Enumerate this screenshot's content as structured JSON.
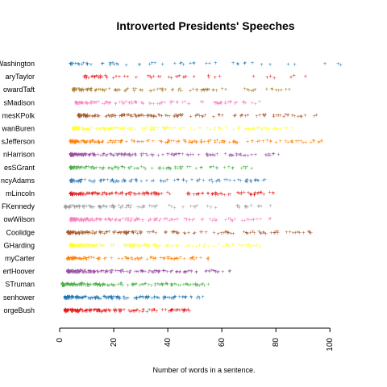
{
  "chart_data": {
    "type": "scatter",
    "title": "Introverted Presidents' Speeches",
    "xlabel": "Number of words in a sentence.",
    "ylabel": "",
    "xlim": [
      0,
      105
    ],
    "xticks": [
      0,
      20,
      40,
      60,
      80,
      100
    ],
    "grid": false,
    "categories": [
      {
        "label": "Washington",
        "color": "#1f78b4",
        "min": 4,
        "max": 104,
        "density": "sparse"
      },
      {
        "label": "aryTaylor",
        "color": "#e31a1c",
        "min": 9,
        "max": 91,
        "density": "sparse"
      },
      {
        "label": "owardTaft",
        "color": "#a6761d",
        "min": 5,
        "max": 85,
        "density": "medium"
      },
      {
        "label": "sMadison",
        "color": "#f781bf",
        "min": 6,
        "max": 74,
        "density": "medium"
      },
      {
        "label": "mesKPolk",
        "color": "#a65628",
        "min": 7,
        "max": 95,
        "density": "dense"
      },
      {
        "label": "wanBuren",
        "color": "#ffff33",
        "min": 5,
        "max": 86,
        "density": "dense"
      },
      {
        "label": "sJefferson",
        "color": "#ff7f00",
        "min": 4,
        "max": 97,
        "density": "dense"
      },
      {
        "label": "nHarrison",
        "color": "#984ea3",
        "min": 4,
        "max": 81,
        "density": "dense"
      },
      {
        "label": "esSGrant",
        "color": "#4daf4a",
        "min": 4,
        "max": 71,
        "density": "medium"
      },
      {
        "label": "ncyAdams",
        "color": "#377eb8",
        "min": 4,
        "max": 76,
        "density": "medium"
      },
      {
        "label": "mLincoln",
        "color": "#e41a1c",
        "min": 4,
        "max": 79,
        "density": "dense"
      },
      {
        "label": "FKennedy",
        "color": "#999999",
        "min": 2,
        "max": 78,
        "density": "medium"
      },
      {
        "label": "owWilson",
        "color": "#f781bf",
        "min": 4,
        "max": 78,
        "density": "dense"
      },
      {
        "label": "Coolidge",
        "color": "#a65628",
        "min": 3,
        "max": 93,
        "density": "dense"
      },
      {
        "label": "GHarding",
        "color": "#ffff33",
        "min": 4,
        "max": 74,
        "density": "dense"
      },
      {
        "label": "myCarter",
        "color": "#ff7f00",
        "min": 3,
        "max": 55,
        "density": "medium"
      },
      {
        "label": "ertHoover",
        "color": "#984ea3",
        "min": 3,
        "max": 63,
        "density": "dense"
      },
      {
        "label": "STruman",
        "color": "#4daf4a",
        "min": 1,
        "max": 55,
        "density": "dense"
      },
      {
        "label": "senhower",
        "color": "#1f78b4",
        "min": 2,
        "max": 53,
        "density": "dense"
      },
      {
        "label": "orgeBush",
        "color": "#e31a1c",
        "min": 2,
        "max": 48,
        "density": "dense"
      }
    ]
  }
}
